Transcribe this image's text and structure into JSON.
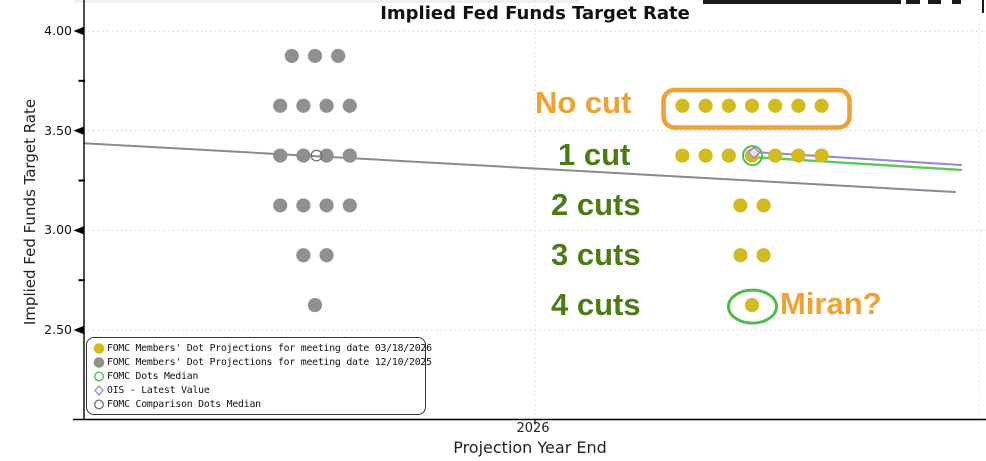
{
  "title": "Implied Fed Funds Target Rate",
  "y_axis": {
    "label": "Implied Fed Funds Target Rate",
    "ticks": [
      "4.00",
      "3.50",
      "3.00",
      "2.50"
    ]
  },
  "x_axis": {
    "label": "Projection Year End",
    "ticks": [
      "2026"
    ]
  },
  "annotations": {
    "no_cut": "No cut",
    "one_cut": "1 cut",
    "two_cuts": "2 cuts",
    "three_cuts": "3 cuts",
    "four_cuts": "4 cuts",
    "miran": "Miran?"
  },
  "legend": {
    "items": [
      {
        "marker": "filled-circle",
        "color": "#d2ba1f",
        "label": "FOMC Members' Dot Projections for meeting date 03/18/2026"
      },
      {
        "marker": "filled-circle",
        "color": "#909090",
        "label": "FOMC Members' Dot Projections for meeting date 12/10/2025"
      },
      {
        "marker": "open-circle",
        "color": "#4dbd51",
        "label": "FOMC Dots Median"
      },
      {
        "marker": "open-diamond",
        "color": "#9784cd",
        "label": "OIS - Latest Value"
      },
      {
        "marker": "open-circle",
        "color": "#777777",
        "label": "FOMC Comparison Dots Median"
      }
    ]
  },
  "colors": {
    "yellow_dots": "#d2ba1f",
    "gray_dots": "#909090",
    "orange_accent": "#f0a12f",
    "olive_labels": "#4a7c14",
    "green_accent": "#4dbd51",
    "purple_line": "#9784cd",
    "gray_line": "#8a8a8a"
  },
  "chart_data": {
    "type": "scatter",
    "title": "Implied Fed Funds Target Rate",
    "xlabel": "Projection Year End",
    "ylabel": "Implied Fed Funds Target Rate",
    "x_categories": [
      "2026"
    ],
    "ylim": [
      2.4,
      4.06
    ],
    "yticks": [
      4.0,
      3.5,
      3.0,
      2.5
    ],
    "minor_yticks": [
      3.75,
      3.25,
      2.75
    ],
    "grid": "dotted",
    "legend_position": "lower-left",
    "series": [
      {
        "name": "FOMC Members' Dot Projections for meeting date 12/10/2025",
        "color": "#909090",
        "cluster": "left",
        "dots": [
          {
            "rate": 3.875,
            "count": 3
          },
          {
            "rate": 3.625,
            "count": 4
          },
          {
            "rate": 3.375,
            "count": 4
          },
          {
            "rate": 3.125,
            "count": 4
          },
          {
            "rate": 2.875,
            "count": 2
          },
          {
            "rate": 2.625,
            "count": 1
          }
        ]
      },
      {
        "name": "FOMC Members' Dot Projections for meeting date 03/18/2026",
        "color": "#d2ba1f",
        "cluster": "right",
        "dots": [
          {
            "rate": 3.625,
            "count": 7,
            "label": "No cut"
          },
          {
            "rate": 3.375,
            "count": 7,
            "label": "1 cut"
          },
          {
            "rate": 3.125,
            "count": 2,
            "label": "2 cuts"
          },
          {
            "rate": 2.875,
            "count": 2,
            "label": "3 cuts"
          },
          {
            "rate": 2.625,
            "count": 1,
            "label": "4 cuts"
          }
        ]
      }
    ],
    "markers": [
      {
        "name": "FOMC Dots Median",
        "rate": 3.375,
        "cluster": "right",
        "style": "open-circle-green"
      },
      {
        "name": "OIS - Latest Value",
        "rate": 3.39,
        "cluster": "right",
        "style": "open-diamond-purple"
      },
      {
        "name": "FOMC Comparison Dots Median",
        "rate": 3.375,
        "cluster": "left",
        "style": "open-circle-gray"
      }
    ],
    "lines": [
      {
        "name": "ois-forward-curve-gray",
        "color": "#8a8a8a",
        "width": 2,
        "rate_start": 3.437,
        "rate_end": 3.192
      },
      {
        "name": "path-purple",
        "color": "#9784cd",
        "width": 2,
        "rate_start": 3.393,
        "rate_end": 3.328
      },
      {
        "name": "path-green",
        "color": "#55cb5c",
        "width": 2.4,
        "rate_start": 3.368,
        "rate_end": 3.303
      }
    ],
    "highlights": [
      {
        "name": "no-cut-box",
        "shape": "rounded-rect",
        "color": "#f0a12f",
        "around": "rate 3.625 right cluster"
      },
      {
        "name": "miran-ellipse",
        "shape": "ellipse",
        "color": "#4dbd51",
        "around": "rate 2.625 right cluster"
      }
    ]
  }
}
